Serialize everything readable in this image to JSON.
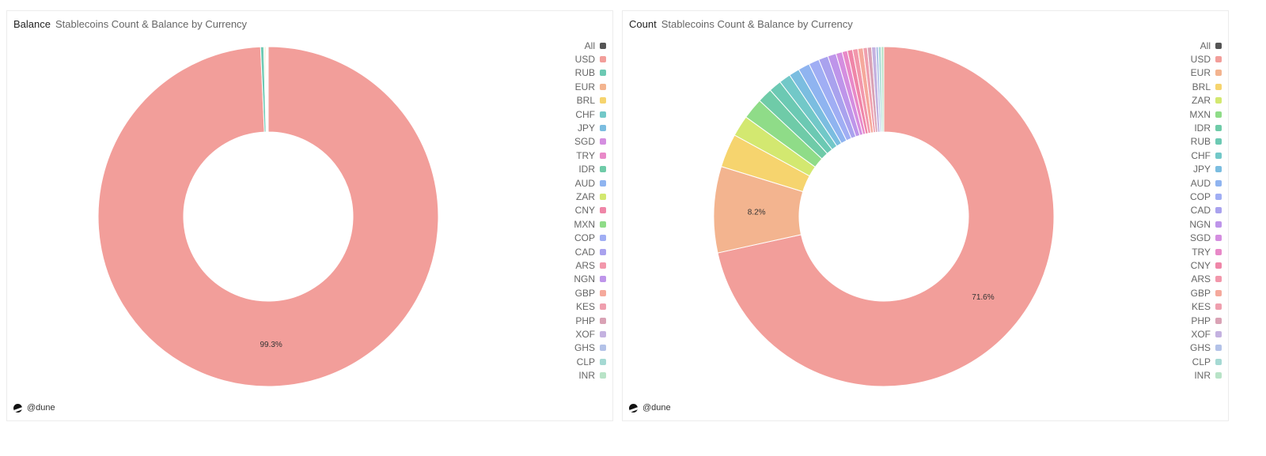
{
  "footer": "@dune",
  "chart_data": [
    {
      "type": "pie",
      "donut": true,
      "title": "Balance",
      "subtitle": "Stablecoins Count & Balance by Currency",
      "legend_position": "right",
      "legend_all": "All",
      "all_color": "#555555",
      "labels": [
        "USD",
        "RUB",
        "EUR",
        "BRL",
        "CHF",
        "JPY",
        "SGD",
        "TRY",
        "IDR",
        "AUD",
        "ZAR",
        "CNY",
        "MXN",
        "COP",
        "CAD",
        "ARS",
        "NGN",
        "GBP",
        "KES",
        "PHP",
        "XOF",
        "GHS",
        "CLP",
        "INR"
      ],
      "values": [
        99.3,
        0.3,
        0.1,
        0.1,
        0.03,
        0.02,
        0.02,
        0.02,
        0.01,
        0.01,
        0.01,
        0.01,
        0.01,
        0.01,
        0.01,
        0.01,
        0.01,
        0.01,
        0.005,
        0.005,
        0.005,
        0.005,
        0.005,
        0.005
      ],
      "colors": [
        "#f29e9a",
        "#6cc9b3",
        "#f3b48f",
        "#f6d46e",
        "#72c8c8",
        "#7bbde0",
        "#d48ee0",
        "#e889c8",
        "#6fcba8",
        "#8fb4f0",
        "#d3e870",
        "#ef86a8",
        "#8fdc88",
        "#a0aef4",
        "#a9a2ee",
        "#f297ab",
        "#be95ea",
        "#f5a99c",
        "#ef9fae",
        "#d9a2b5",
        "#c4b2e0",
        "#b3c2e8",
        "#a5d9d3",
        "#b8e3c7"
      ],
      "data_labels": {
        "USD": "99.3%"
      }
    },
    {
      "type": "pie",
      "donut": true,
      "title": "Count",
      "subtitle": "Stablecoins Count & Balance by Currency",
      "legend_position": "right",
      "legend_all": "All",
      "all_color": "#555555",
      "labels": [
        "USD",
        "EUR",
        "BRL",
        "ZAR",
        "MXN",
        "IDR",
        "RUB",
        "CHF",
        "JPY",
        "AUD",
        "COP",
        "CAD",
        "NGN",
        "SGD",
        "TRY",
        "CNY",
        "ARS",
        "GBP",
        "KES",
        "PHP",
        "XOF",
        "GHS",
        "CLP",
        "INR"
      ],
      "values": [
        71.6,
        8.2,
        3.2,
        2.0,
        2.0,
        1.4,
        1.2,
        1.1,
        1.0,
        1.1,
        1.0,
        0.9,
        0.8,
        0.6,
        0.5,
        0.5,
        0.5,
        0.5,
        0.4,
        0.4,
        0.4,
        0.25,
        0.25,
        0.25
      ],
      "colors": [
        "#f29e9a",
        "#f3b48f",
        "#f6d46e",
        "#d3e870",
        "#8fdc88",
        "#6fcba8",
        "#6cc9b3",
        "#72c8c8",
        "#7bbde0",
        "#8fb4f0",
        "#a0aef4",
        "#a9a2ee",
        "#be95ea",
        "#d48ee0",
        "#e889c8",
        "#ef86a8",
        "#f297ab",
        "#f5a99c",
        "#ef9fae",
        "#d9a2b5",
        "#c4b2e0",
        "#b3c2e8",
        "#a5d9d3",
        "#b8e3c7"
      ],
      "data_labels": {
        "USD": "71.6%",
        "EUR": "8.2%"
      }
    }
  ]
}
